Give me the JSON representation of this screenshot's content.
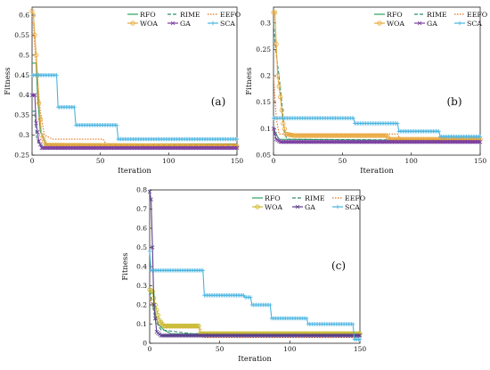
{
  "chart_data": [
    {
      "type": "line",
      "panel_label": "(a)",
      "xlabel": "Iteration",
      "ylabel": "Fitness",
      "xlim": [
        0,
        150
      ],
      "ylim": [
        0.25,
        0.62
      ],
      "xticks": [
        "0",
        "50",
        "100",
        "150"
      ],
      "yticks": [
        "0.25",
        "0.3",
        "0.35",
        "0.4",
        "0.45",
        "0.5",
        "0.55",
        "0.6"
      ],
      "legend_position": "top-right",
      "series": [
        {
          "name": "RFO",
          "color": "#2ca25f",
          "marker": "none",
          "dash": "solid",
          "points": [
            [
              0,
              0.48
            ],
            [
              3,
              0.48
            ],
            [
              4,
              0.4
            ],
            [
              6,
              0.31
            ],
            [
              8,
              0.295
            ],
            [
              10,
              0.278
            ],
            [
              150,
              0.278
            ]
          ]
        },
        {
          "name": "RIME",
          "color": "#2f8f6f",
          "marker": "none",
          "dash": "dash",
          "points": [
            [
              0,
              0.36
            ],
            [
              2,
              0.36
            ],
            [
              3,
              0.3
            ],
            [
              5,
              0.275
            ],
            [
              150,
              0.275
            ]
          ]
        },
        {
          "name": "EEFO",
          "color": "#e8731c",
          "marker": "none",
          "dash": "dot",
          "points": [
            [
              0,
              0.58
            ],
            [
              1,
              0.58
            ],
            [
              2,
              0.52
            ],
            [
              4,
              0.44
            ],
            [
              6,
              0.36
            ],
            [
              9,
              0.3
            ],
            [
              15,
              0.29
            ],
            [
              52,
              0.29
            ],
            [
              54,
              0.278
            ],
            [
              150,
              0.278
            ]
          ]
        },
        {
          "name": "WOA",
          "color": "#e9a83c",
          "marker": "circle",
          "dash": "solid",
          "points": [
            [
              0,
              0.61
            ],
            [
              1,
              0.6
            ],
            [
              2,
              0.55
            ],
            [
              3,
              0.5
            ],
            [
              4,
              0.45
            ],
            [
              5,
              0.38
            ],
            [
              7,
              0.3
            ],
            [
              10,
              0.275
            ],
            [
              150,
              0.272
            ]
          ]
        },
        {
          "name": "GA",
          "color": "#7b3fa0",
          "marker": "cross",
          "dash": "solid",
          "points": [
            [
              0,
              0.4
            ],
            [
              2,
              0.4
            ],
            [
              3,
              0.33
            ],
            [
              5,
              0.285
            ],
            [
              7,
              0.268
            ],
            [
              150,
              0.268
            ]
          ]
        },
        {
          "name": "SCA",
          "color": "#48b4e0",
          "marker": "plus",
          "dash": "solid",
          "points": [
            [
              0,
              0.45
            ],
            [
              18,
              0.45
            ],
            [
              19,
              0.37
            ],
            [
              31,
              0.37
            ],
            [
              32,
              0.325
            ],
            [
              62,
              0.325
            ],
            [
              63,
              0.29
            ],
            [
              150,
              0.29
            ]
          ]
        }
      ]
    },
    {
      "type": "line",
      "panel_label": "(b)",
      "xlabel": "Iteration",
      "ylabel": "Fitness",
      "xlim": [
        0,
        150
      ],
      "ylim": [
        0.05,
        0.33
      ],
      "xticks": [
        "0",
        "50",
        "100",
        "150"
      ],
      "yticks": [
        "0.05",
        "0.1",
        "0.15",
        "0.2",
        "0.25",
        "0.3"
      ],
      "legend_position": "top-right",
      "series": [
        {
          "name": "RFO",
          "color": "#2ca25f",
          "marker": "none",
          "dash": "solid",
          "points": [
            [
              0,
              0.1
            ],
            [
              2,
              0.09
            ],
            [
              4,
              0.08
            ],
            [
              150,
              0.077
            ]
          ]
        },
        {
          "name": "RIME",
          "color": "#2f8f6f",
          "marker": "none",
          "dash": "dash",
          "points": [
            [
              0,
              0.3
            ],
            [
              2,
              0.24
            ],
            [
              4,
              0.2
            ],
            [
              6,
              0.15
            ],
            [
              8,
              0.09
            ],
            [
              10,
              0.08
            ],
            [
              150,
              0.078
            ]
          ]
        },
        {
          "name": "EEFO",
          "color": "#e8731c",
          "marker": "none",
          "dash": "dot",
          "points": [
            [
              0,
              0.2
            ],
            [
              2,
              0.12
            ],
            [
              4,
              0.09
            ],
            [
              90,
              0.09
            ],
            [
              92,
              0.08
            ],
            [
              150,
              0.079
            ]
          ]
        },
        {
          "name": "WOA",
          "color": "#e9a83c",
          "marker": "circle",
          "dash": "solid",
          "points": [
            [
              0,
              0.32
            ],
            [
              1,
              0.32
            ],
            [
              2,
              0.26
            ],
            [
              3,
              0.2
            ],
            [
              5,
              0.16
            ],
            [
              7,
              0.11
            ],
            [
              9,
              0.09
            ],
            [
              15,
              0.087
            ],
            [
              82,
              0.087
            ],
            [
              84,
              0.08
            ],
            [
              150,
              0.08
            ]
          ]
        },
        {
          "name": "GA",
          "color": "#7b3fa0",
          "marker": "cross",
          "dash": "solid",
          "points": [
            [
              0,
              0.1
            ],
            [
              2,
              0.08
            ],
            [
              5,
              0.075
            ],
            [
              150,
              0.075
            ]
          ]
        },
        {
          "name": "SCA",
          "color": "#48b4e0",
          "marker": "plus",
          "dash": "solid",
          "points": [
            [
              0,
              0.12
            ],
            [
              58,
              0.12
            ],
            [
              59,
              0.11
            ],
            [
              90,
              0.11
            ],
            [
              91,
              0.095
            ],
            [
              120,
              0.095
            ],
            [
              121,
              0.085
            ],
            [
              150,
              0.085
            ]
          ]
        }
      ]
    },
    {
      "type": "line",
      "panel_label": "(c)",
      "xlabel": "Iteration",
      "ylabel": "Fitness",
      "xlim": [
        0,
        150
      ],
      "ylim": [
        0,
        0.8
      ],
      "xticks": [
        "0",
        "50",
        "100",
        "150"
      ],
      "yticks": [
        "0",
        "0.1",
        "0.2",
        "0.3",
        "0.4",
        "0.5",
        "0.6",
        "0.7",
        "0.8"
      ],
      "legend_position": "top-right",
      "series": [
        {
          "name": "RFO",
          "color": "#2ca25f",
          "marker": "none",
          "dash": "solid",
          "points": [
            [
              0,
              0.26
            ],
            [
              3,
              0.26
            ],
            [
              4,
              0.16
            ],
            [
              6,
              0.1
            ],
            [
              10,
              0.07
            ],
            [
              15,
              0.05
            ],
            [
              150,
              0.045
            ]
          ]
        },
        {
          "name": "RIME",
          "color": "#2f8f6f",
          "marker": "none",
          "dash": "dash",
          "points": [
            [
              0,
              0.27
            ],
            [
              2,
              0.2
            ],
            [
              4,
              0.12
            ],
            [
              8,
              0.07
            ],
            [
              30,
              0.05
            ],
            [
              150,
              0.04
            ]
          ]
        },
        {
          "name": "EEFO",
          "color": "#e8731c",
          "marker": "none",
          "dash": "dot",
          "points": [
            [
              0,
              0.24
            ],
            [
              3,
              0.18
            ],
            [
              6,
              0.1
            ],
            [
              10,
              0.08
            ],
            [
              36,
              0.08
            ],
            [
              38,
              0.03
            ],
            [
              150,
              0.03
            ]
          ]
        },
        {
          "name": "WOA",
          "color": "#c7b82c",
          "marker": "circle",
          "dash": "solid",
          "points": [
            [
              0,
              0.28
            ],
            [
              2,
              0.27
            ],
            [
              4,
              0.2
            ],
            [
              7,
              0.12
            ],
            [
              10,
              0.09
            ],
            [
              35,
              0.09
            ],
            [
              36,
              0.05
            ],
            [
              150,
              0.05
            ]
          ]
        },
        {
          "name": "GA",
          "color": "#5a3d8c",
          "marker": "cross",
          "dash": "solid",
          "points": [
            [
              0,
              0.79
            ],
            [
              1,
              0.75
            ],
            [
              2,
              0.5
            ],
            [
              3,
              0.2
            ],
            [
              5,
              0.06
            ],
            [
              8,
              0.04
            ],
            [
              150,
              0.04
            ]
          ]
        },
        {
          "name": "SCA",
          "color": "#48b4e0",
          "marker": "plus",
          "dash": "solid",
          "points": [
            [
              0,
              0.48
            ],
            [
              1,
              0.38
            ],
            [
              38,
              0.38
            ],
            [
              39,
              0.25
            ],
            [
              67,
              0.25
            ],
            [
              68,
              0.24
            ],
            [
              72,
              0.24
            ],
            [
              73,
              0.2
            ],
            [
              86,
              0.2
            ],
            [
              87,
              0.13
            ],
            [
              112,
              0.13
            ],
            [
              113,
              0.1
            ],
            [
              145,
              0.1
            ],
            [
              146,
              0.02
            ],
            [
              150,
              0.02
            ]
          ]
        }
      ]
    }
  ]
}
